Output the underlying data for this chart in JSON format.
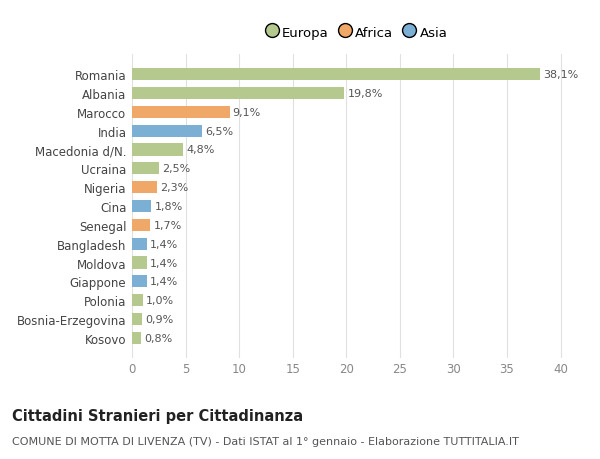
{
  "categories": [
    "Kosovo",
    "Bosnia-Erzegovina",
    "Polonia",
    "Giappone",
    "Moldova",
    "Bangladesh",
    "Senegal",
    "Cina",
    "Nigeria",
    "Ucraina",
    "Macedonia d/N.",
    "India",
    "Marocco",
    "Albania",
    "Romania"
  ],
  "values": [
    0.8,
    0.9,
    1.0,
    1.4,
    1.4,
    1.4,
    1.7,
    1.8,
    2.3,
    2.5,
    4.8,
    6.5,
    9.1,
    19.8,
    38.1
  ],
  "labels": [
    "0,8%",
    "0,9%",
    "1,0%",
    "1,4%",
    "1,4%",
    "1,4%",
    "1,7%",
    "1,8%",
    "2,3%",
    "2,5%",
    "4,8%",
    "6,5%",
    "9,1%",
    "19,8%",
    "38,1%"
  ],
  "colors": [
    "#b5c98e",
    "#b5c98e",
    "#b5c98e",
    "#7bafd4",
    "#b5c98e",
    "#7bafd4",
    "#f0a868",
    "#7bafd4",
    "#f0a868",
    "#b5c98e",
    "#b5c98e",
    "#7bafd4",
    "#f0a868",
    "#b5c98e",
    "#b5c98e"
  ],
  "legend_labels": [
    "Europa",
    "Africa",
    "Asia"
  ],
  "legend_colors": [
    "#b5c98e",
    "#f0a868",
    "#7bafd4"
  ],
  "title": "Cittadini Stranieri per Cittadinanza",
  "subtitle": "COMUNE DI MOTTA DI LIVENZA (TV) - Dati ISTAT al 1° gennaio - Elaborazione TUTTITALIA.IT",
  "xlim": [
    0,
    42
  ],
  "xticks": [
    0,
    5,
    10,
    15,
    20,
    25,
    30,
    35,
    40
  ],
  "bg_color": "#ffffff",
  "grid_color": "#e0e0e0",
  "bar_height": 0.65,
  "title_fontsize": 10.5,
  "subtitle_fontsize": 8,
  "label_fontsize": 8,
  "ytick_fontsize": 8.5,
  "xtick_fontsize": 8.5,
  "legend_fontsize": 9.5
}
